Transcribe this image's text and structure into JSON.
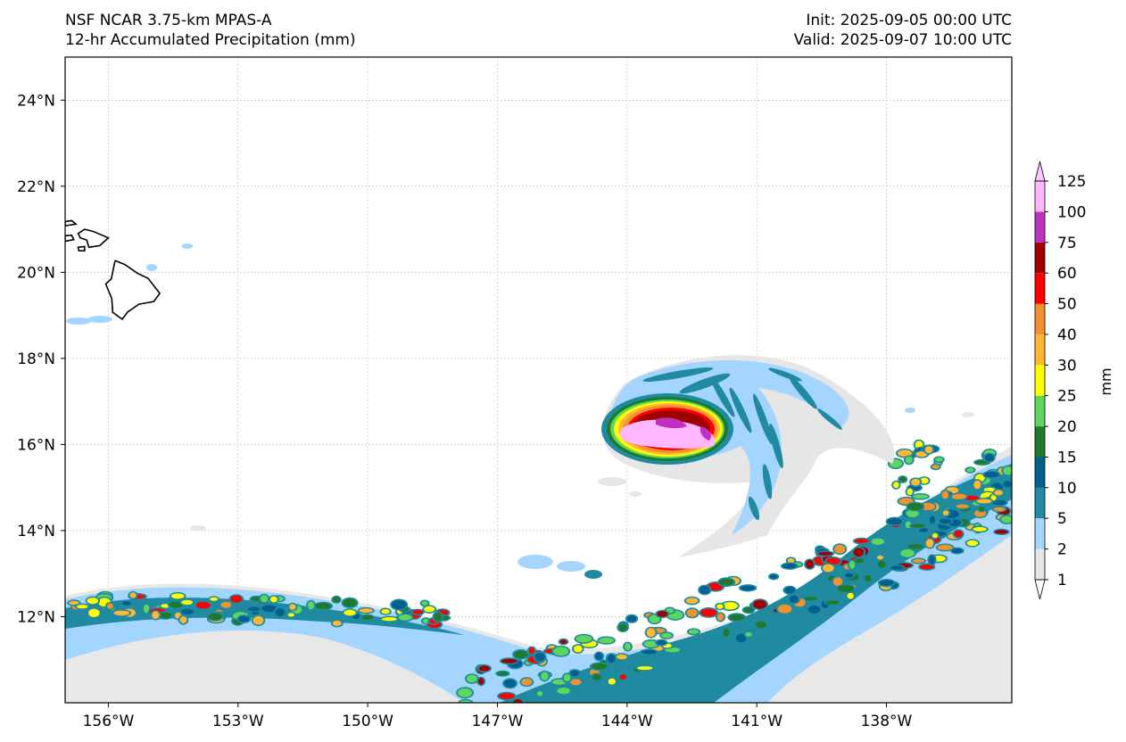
{
  "header": {
    "model": "NSF NCAR 3.75-km MPAS-A",
    "field": "12-hr Accumulated Precipitation (mm)",
    "init": "Init: 2025-09-05 00:00 UTC",
    "valid": "Valid: 2025-09-07 10:00 UTC"
  },
  "map": {
    "lon_range": [
      -157.0,
      -135.1
    ],
    "lat_range": [
      10.0,
      25.0
    ],
    "lon_ticks": [
      {
        "value": -156,
        "label": "156°W"
      },
      {
        "value": -153,
        "label": "153°W"
      },
      {
        "value": -150,
        "label": "150°W"
      },
      {
        "value": -147,
        "label": "147°W"
      },
      {
        "value": -144,
        "label": "144°W"
      },
      {
        "value": -141,
        "label": "141°W"
      },
      {
        "value": -138,
        "label": "138°W"
      }
    ],
    "lat_ticks": [
      {
        "value": 24,
        "label": "24°N"
      },
      {
        "value": 22,
        "label": "22°N"
      },
      {
        "value": 20,
        "label": "20°N"
      },
      {
        "value": 18,
        "label": "18°N"
      },
      {
        "value": 16,
        "label": "16°N"
      },
      {
        "value": 14,
        "label": "14°N"
      },
      {
        "value": 12,
        "label": "12°N"
      }
    ],
    "gridlines": true
  },
  "colorbar": {
    "unit_label": "mm",
    "extend": "both",
    "levels": [
      1,
      2,
      5,
      10,
      15,
      20,
      25,
      30,
      40,
      50,
      60,
      75,
      100,
      125
    ],
    "tick_labels": [
      "1",
      "2",
      "5",
      "10",
      "15",
      "20",
      "25",
      "30",
      "40",
      "50",
      "60",
      "75",
      "100",
      "125"
    ],
    "colors": [
      "#e6e6e6",
      "#a3d5ff",
      "#1f8aa0",
      "#005f8f",
      "#1e7a2a",
      "#5cd65c",
      "#ffff00",
      "#ffb833",
      "#f2922e",
      "#ff0000",
      "#a00000",
      "#c030c0",
      "#ffb8ff"
    ],
    "under_color": "#ffffff",
    "over_color": "#ffc8ff"
  },
  "features": {
    "hurricane_center": {
      "lon": -142.3,
      "lat": 16.4
    },
    "hawaii_big_island": [
      [
        -155.84,
        20.27
      ],
      [
        -155.62,
        20.18
      ],
      [
        -155.33,
        19.98
      ],
      [
        -155.08,
        19.86
      ],
      [
        -154.81,
        19.51
      ],
      [
        -154.95,
        19.32
      ],
      [
        -155.29,
        19.26
      ],
      [
        -155.55,
        19.08
      ],
      [
        -155.68,
        18.91
      ],
      [
        -155.9,
        19.07
      ],
      [
        -155.92,
        19.39
      ],
      [
        -156.06,
        19.73
      ],
      [
        -155.93,
        19.85
      ],
      [
        -155.86,
        20.2
      ]
    ],
    "maui": [
      [
        -156.7,
        20.9
      ],
      [
        -156.55,
        21.0
      ],
      [
        -156.35,
        20.95
      ],
      [
        -156.0,
        20.8
      ],
      [
        -156.2,
        20.62
      ],
      [
        -156.45,
        20.58
      ],
      [
        -156.5,
        20.75
      ],
      [
        -156.65,
        20.8
      ]
    ],
    "molokai": [
      [
        -157.0,
        21.18
      ],
      [
        -156.85,
        21.2
      ],
      [
        -156.75,
        21.12
      ],
      [
        -157.0,
        21.08
      ]
    ],
    "lanai": [
      [
        -157.0,
        20.85
      ],
      [
        -156.85,
        20.86
      ],
      [
        -156.8,
        20.76
      ],
      [
        -157.0,
        20.72
      ]
    ],
    "kahoolawe": [
      [
        -156.7,
        20.58
      ],
      [
        -156.55,
        20.6
      ],
      [
        -156.55,
        20.5
      ],
      [
        -156.68,
        20.5
      ]
    ]
  }
}
